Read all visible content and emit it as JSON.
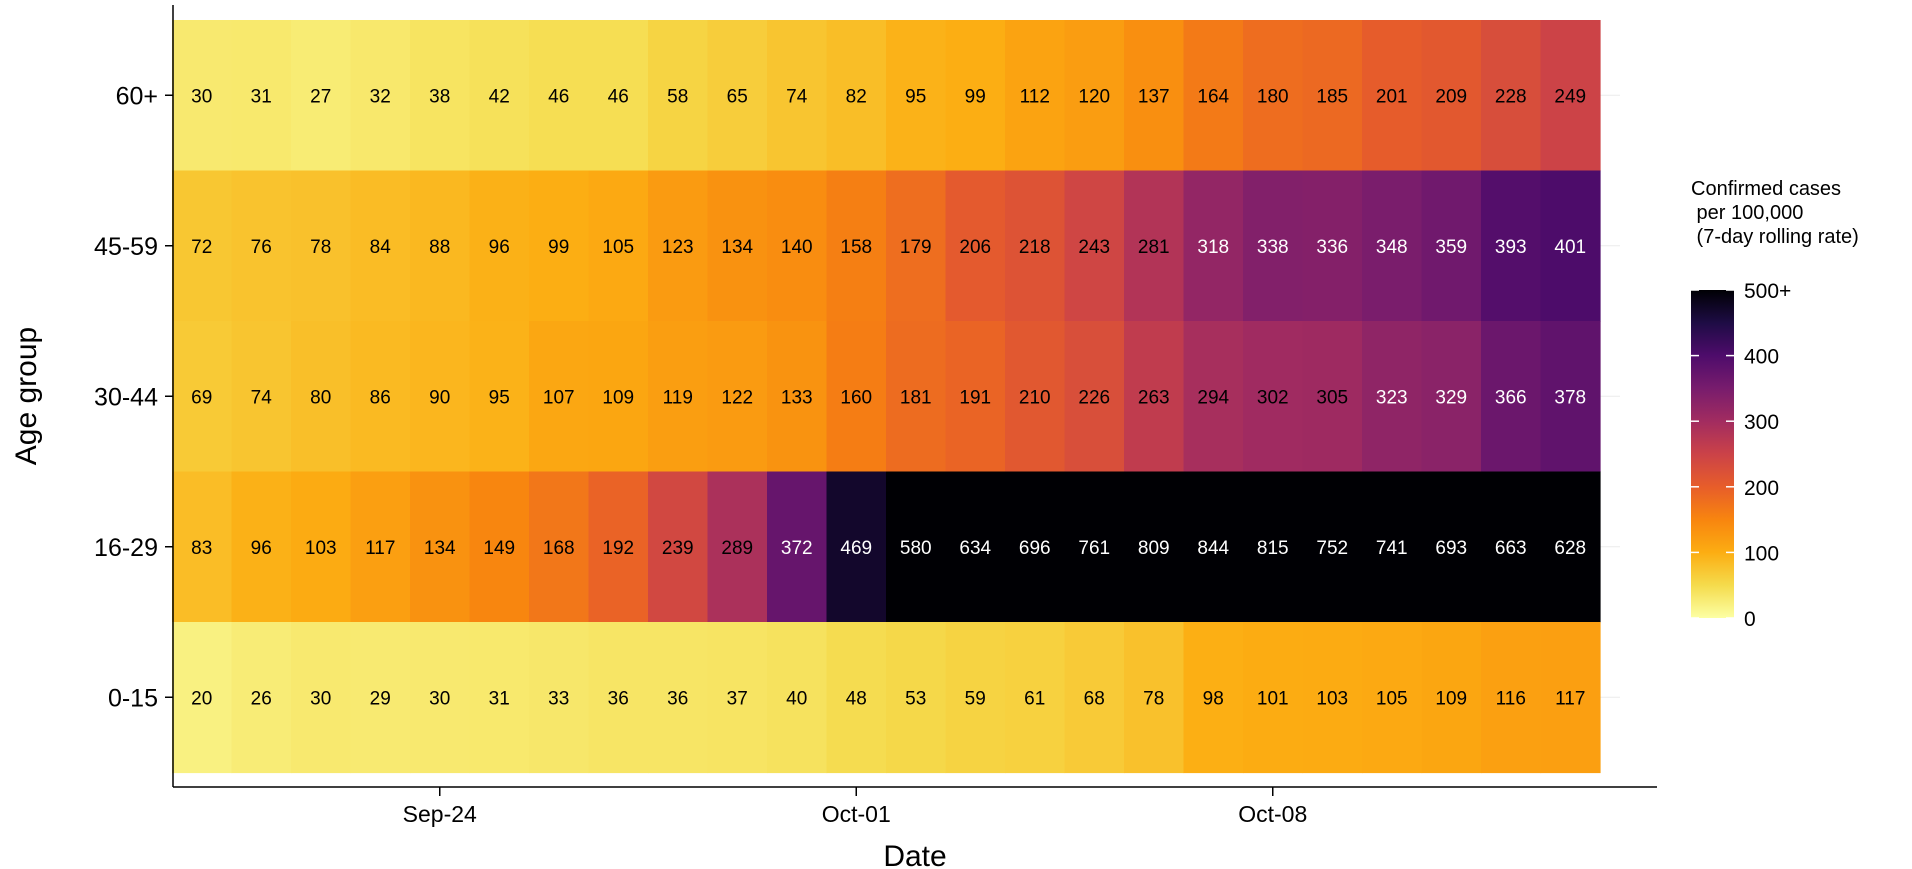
{
  "chart_data": {
    "type": "heatmap",
    "xlabel": "Date",
    "ylabel": "Age group",
    "x_tick_labels": [
      "Sep-24",
      "Oct-01",
      "Oct-08"
    ],
    "rows": [
      "60+",
      "45-59",
      "30-44",
      "16-29",
      "0-15"
    ],
    "values": [
      [
        30,
        31,
        27,
        32,
        38,
        42,
        46,
        46,
        58,
        65,
        74,
        82,
        95,
        99,
        112,
        120,
        137,
        164,
        180,
        185,
        201,
        209,
        228,
        249
      ],
      [
        72,
        76,
        78,
        84,
        88,
        96,
        99,
        105,
        123,
        134,
        140,
        158,
        179,
        206,
        218,
        243,
        281,
        318,
        338,
        336,
        348,
        359,
        393,
        401
      ],
      [
        69,
        74,
        80,
        86,
        90,
        95,
        107,
        109,
        119,
        122,
        133,
        160,
        181,
        191,
        210,
        226,
        263,
        294,
        302,
        305,
        323,
        329,
        366,
        378
      ],
      [
        83,
        96,
        103,
        117,
        134,
        149,
        168,
        192,
        239,
        289,
        372,
        469,
        580,
        634,
        696,
        761,
        809,
        844,
        815,
        752,
        741,
        693,
        663,
        628
      ],
      [
        20,
        26,
        30,
        29,
        30,
        31,
        33,
        36,
        36,
        37,
        40,
        48,
        53,
        59,
        61,
        68,
        78,
        98,
        101,
        103,
        105,
        109,
        116,
        117
      ]
    ],
    "legend": {
      "title_lines": [
        "Confirmed cases",
        " per 100,000",
        " (7-day rolling rate)"
      ],
      "range": [
        0,
        500
      ],
      "tick_values": [
        0,
        100,
        200,
        300,
        400,
        500
      ],
      "tick_labels": [
        "0",
        "100",
        "200",
        "300",
        "400",
        "500+"
      ],
      "colormap": "inferno-reversed",
      "placement": "right"
    },
    "grid": true
  }
}
